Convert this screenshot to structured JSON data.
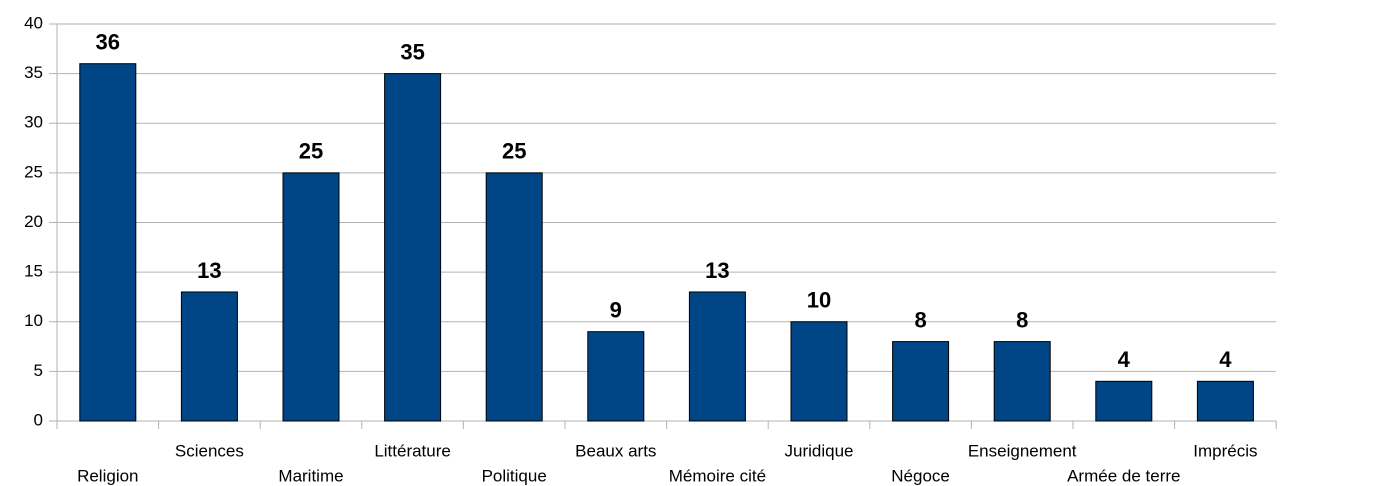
{
  "chart_data": {
    "type": "bar",
    "categories": [
      "Religion",
      "Sciences",
      "Maritime",
      "Littérature",
      "Politique",
      "Beaux arts",
      "Mémoire cité",
      "Juridique",
      "Négoce",
      "Enseignement",
      "Armée de terre",
      "Imprécis"
    ],
    "values": [
      36,
      13,
      25,
      35,
      25,
      9,
      13,
      10,
      8,
      8,
      4,
      4
    ],
    "color": "#004586",
    "ylim": [
      0,
      40
    ],
    "yticks": [
      0,
      5,
      10,
      15,
      20,
      25,
      30,
      35,
      40
    ],
    "grid": true
  }
}
